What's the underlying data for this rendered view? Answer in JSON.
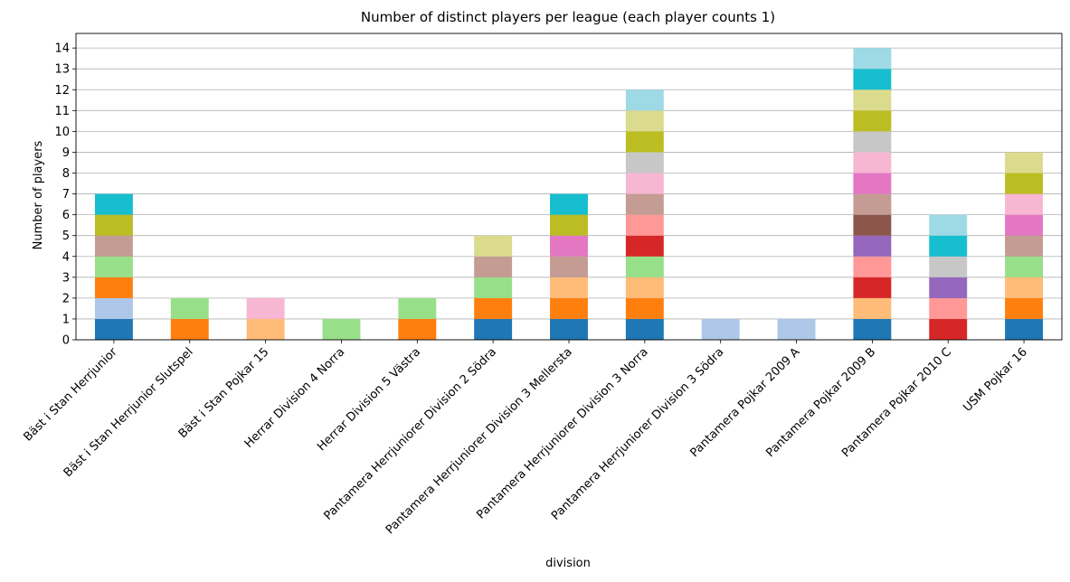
{
  "chart_data": {
    "type": "bar",
    "stacked": true,
    "title": "Number of distinct players per league (each player counts 1)",
    "xlabel": "division",
    "ylabel": "Number of players",
    "ylim": [
      0,
      14.7
    ],
    "yticks": [
      0,
      1,
      2,
      3,
      4,
      5,
      6,
      7,
      8,
      9,
      10,
      11,
      12,
      13,
      14
    ],
    "grid": "horizontal",
    "legend": "none",
    "categories": [
      "Bäst i Stan Herrjunior",
      "Bäst i Stan Herrjunior Slutspel",
      "Bäst i Stan Pojkar 15",
      "Herrar Division 4 Norra",
      "Herrar Division 5 Västra",
      "Pantamera Herrjuniorer Division 2 Södra",
      "Pantamera Herrjuniorer Division 3 Mellersta",
      "Pantamera Herrjuniorer Division 3 Norra",
      "Pantamera Herrjuniorer Division 3 Södra",
      "Pantamera Pojkar 2009 A",
      "Pantamera Pojkar 2009 B",
      "Pantamera Pojkar 2010 C",
      "USM Pojkar 16"
    ],
    "stacks": [
      [
        0,
        1,
        2,
        4,
        10,
        16,
        18
      ],
      [
        2,
        4
      ],
      [
        3,
        13
      ],
      [
        4
      ],
      [
        2,
        4
      ],
      [
        0,
        2,
        4,
        10,
        17
      ],
      [
        0,
        2,
        3,
        10,
        12,
        16,
        18
      ],
      [
        0,
        2,
        3,
        4,
        6,
        7,
        10,
        13,
        14,
        16,
        17,
        19
      ],
      [
        1
      ],
      [
        1
      ],
      [
        0,
        3,
        6,
        7,
        8,
        9,
        10,
        12,
        13,
        14,
        16,
        17,
        18,
        19
      ],
      [
        6,
        7,
        8,
        14,
        18,
        19
      ],
      [
        0,
        2,
        3,
        4,
        10,
        12,
        13,
        16,
        17
      ]
    ],
    "palette": [
      "#1f77b4",
      "#aec7e8",
      "#ff7f0e",
      "#ffbb78",
      "#98df8a",
      "#2ca02c",
      "#d62728",
      "#ff9896",
      "#9467bd",
      "#8c564b",
      "#c49c94",
      "#c5b0d5",
      "#e377c2",
      "#f7b6d2",
      "#c7c7c7",
      "#7f7f7f",
      "#bcbd22",
      "#dbdb8d",
      "#17becf",
      "#9edae5"
    ]
  }
}
